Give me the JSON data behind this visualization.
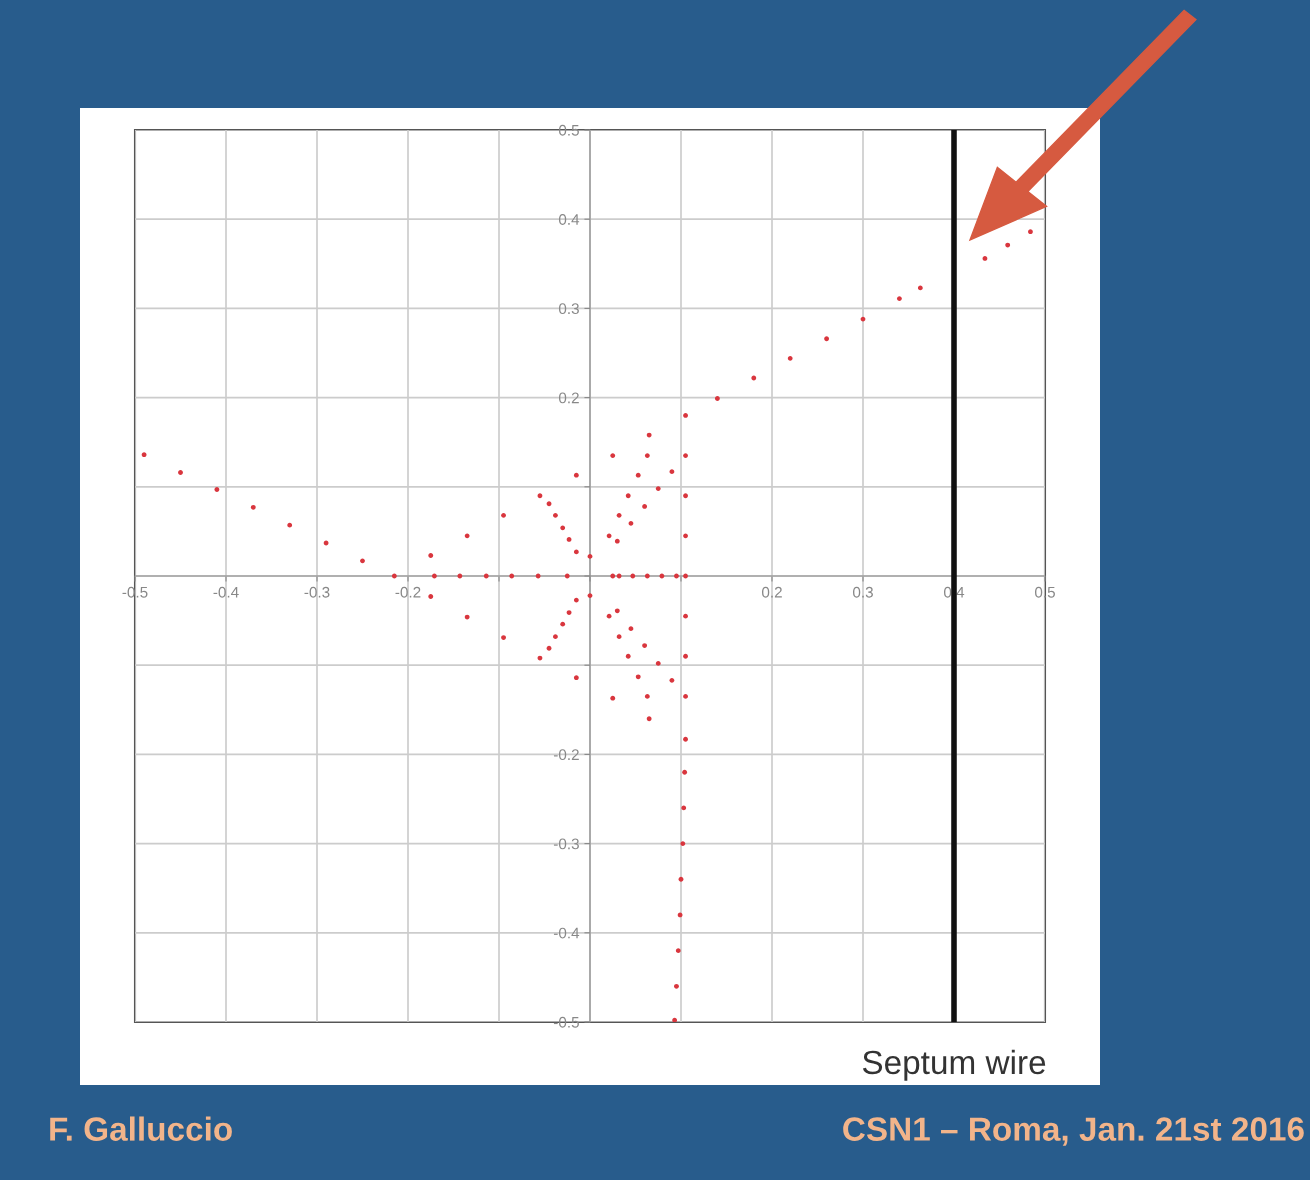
{
  "chart_data": {
    "type": "scatter",
    "marker": "circle",
    "xlim": [
      -0.5,
      0.5
    ],
    "ylim": [
      -0.5,
      0.5
    ],
    "xticks": [
      -0.5,
      -0.4,
      -0.3,
      -0.2,
      {
        "value": -0.1,
        "label": null
      },
      {
        "value": 0,
        "label": null
      },
      {
        "value": 0.1,
        "label": null
      },
      0.2,
      0.3,
      0.4,
      0.5
    ],
    "yticks": [
      -0.5,
      -0.4,
      -0.3,
      -0.2,
      {
        "value": -0.1,
        "label": null
      },
      {
        "value": 0,
        "label": null
      },
      {
        "value": 0.1,
        "label": null
      },
      0.2,
      0.3,
      0.4,
      0.5
    ],
    "grid": true,
    "series": [
      {
        "color": "#d9363e",
        "x": [
          -0.215,
          -0.175,
          -0.135,
          -0.095,
          -0.055,
          -0.015,
          0.025,
          0.065,
          0.105,
          0.105,
          0.105,
          0.105,
          0.105,
          0.105,
          0.105,
          0.105,
          0.105,
          0.065,
          0.025,
          -0.015,
          -0.055,
          -0.095,
          -0.135,
          -0.175,
          -0.25,
          -0.29,
          -0.33,
          -0.37,
          -0.41,
          -0.45,
          -0.49,
          0.14,
          0.18,
          0.22,
          0.26,
          0.3,
          0.34,
          0.363,
          0.104,
          0.103,
          0.102,
          0.1,
          0.099,
          0.097,
          0.095,
          0.093,
          0.434,
          0.459,
          0.484
        ],
        "values": [
          0,
          0.023,
          0.045,
          0.068,
          0.09,
          0.113,
          0.135,
          0.158,
          0.18,
          0.135,
          0.09,
          0.045,
          0,
          -0.045,
          -0.09,
          -0.135,
          -0.183,
          -0.16,
          -0.137,
          -0.114,
          -0.092,
          -0.069,
          -0.046,
          -0.023,
          0.017,
          0.037,
          0.057,
          0.077,
          0.097,
          0.116,
          0.136,
          0.199,
          0.222,
          0.244,
          0.266,
          0.288,
          0.311,
          0.323,
          -0.22,
          -0.26,
          -0.3,
          -0.34,
          -0.38,
          -0.42,
          -0.46,
          -0.498,
          0.356,
          0.371,
          0.386
        ]
      },
      {
        "color": "#d9363e",
        "x": [
          -0.171,
          -0.045,
          0.063,
          0.09,
          0.095,
          0.09,
          0.063,
          -0.045,
          -0.143,
          -0.038,
          0.053,
          0.075,
          0.079,
          0.075,
          0.053,
          -0.038,
          -0.114,
          -0.03,
          0.042,
          0.06,
          0.063,
          0.06,
          0.042,
          -0.03,
          -0.086,
          -0.023,
          0.032,
          0.045,
          0.047,
          0.045,
          0.032,
          -0.023,
          -0.057,
          -0.015,
          0.021,
          0.03,
          0.032,
          0.03,
          0.021,
          -0.015,
          -0.025,
          0,
          0.025,
          0
        ],
        "values": [
          0,
          0.081,
          0.135,
          0.117,
          0,
          -0.117,
          -0.135,
          -0.081,
          0,
          0.068,
          0.113,
          0.098,
          0,
          -0.098,
          -0.113,
          -0.068,
          0,
          0.054,
          0.09,
          0.078,
          0,
          -0.078,
          -0.09,
          -0.054,
          0,
          0.041,
          0.068,
          0.059,
          0,
          -0.059,
          -0.068,
          -0.041,
          0,
          0.027,
          0.045,
          0.039,
          0,
          -0.039,
          -0.045,
          -0.027,
          0,
          0.022,
          0,
          -0.022
        ]
      }
    ],
    "ref_lines": [
      {
        "axis": "x",
        "value": 0.4,
        "label": "Septum wire",
        "color": "#111111",
        "line_style": "solid"
      }
    ],
    "annotations": [
      "F. Galluccio",
      "CSN1 – Roma, Jan. 21st 2016"
    ]
  }
}
